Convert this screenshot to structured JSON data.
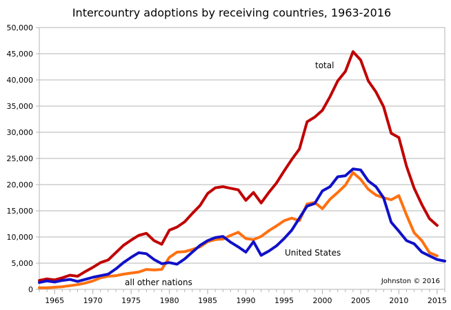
{
  "chart_data": {
    "type": "line",
    "title": "Intercountry adoptions by receiving countries, 1963-2016",
    "xlabel": "",
    "ylabel": "",
    "xlim": [
      1963,
      2016
    ],
    "ylim": [
      0,
      50000
    ],
    "grid": true,
    "x_ticks": [
      {
        "value": 1965,
        "label": "1965"
      },
      {
        "value": 1970,
        "label": "1970"
      },
      {
        "value": 1975,
        "label": "1975"
      },
      {
        "value": 1980,
        "label": "1980"
      },
      {
        "value": 1985,
        "label": "1985"
      },
      {
        "value": 1990,
        "label": "1990"
      },
      {
        "value": 1995,
        "label": "1995"
      },
      {
        "value": 2000,
        "label": "2000"
      },
      {
        "value": 2005,
        "label": "2005"
      },
      {
        "value": 2010,
        "label": "2010"
      },
      {
        "value": 2015,
        "label": "2015"
      }
    ],
    "y_ticks": [
      {
        "value": 0,
        "label": "0"
      },
      {
        "value": 5000,
        "label": "5,000"
      },
      {
        "value": 10000,
        "label": "10,000"
      },
      {
        "value": 15000,
        "label": "15,000"
      },
      {
        "value": 20000,
        "label": "20,000"
      },
      {
        "value": 25000,
        "label": "25,000"
      },
      {
        "value": 30000,
        "label": "30,000"
      },
      {
        "value": 35000,
        "label": "35,000"
      },
      {
        "value": 40000,
        "label": "40,000"
      },
      {
        "value": 45000,
        "label": "45,000"
      },
      {
        "value": 50000,
        "label": "50,000"
      }
    ],
    "series": [
      {
        "name": "total",
        "color": "#c00000",
        "x": [
          1963,
          1964,
          1965,
          1966,
          1967,
          1968,
          1969,
          1970,
          1971,
          1972,
          1973,
          1974,
          1975,
          1976,
          1977,
          1978,
          1979,
          1980,
          1981,
          1982,
          1983,
          1984,
          1985,
          1986,
          1987,
          1988,
          1989,
          1990,
          1991,
          1992,
          1993,
          1994,
          1995,
          1996,
          1997,
          1998,
          1999,
          2000,
          2001,
          2002,
          2003,
          2004,
          2005,
          2006,
          2007,
          2008,
          2009,
          2010,
          2011,
          2012,
          2013,
          2014,
          2015
        ],
        "values": [
          1700,
          2000,
          1800,
          2200,
          2700,
          2500,
          3400,
          4200,
          5100,
          5600,
          7000,
          8400,
          9400,
          10300,
          10700,
          9300,
          8600,
          11300,
          11900,
          12900,
          14500,
          16000,
          18300,
          19400,
          19600,
          19300,
          19000,
          17000,
          18500,
          16500,
          18500,
          20300,
          22600,
          24800,
          26800,
          32000,
          32900,
          34200,
          36800,
          39800,
          41600,
          45400,
          43800,
          39800,
          37700,
          34900,
          29800,
          29000,
          23500,
          19300,
          16200,
          13500,
          12200
        ]
      },
      {
        "name": "United States",
        "color": "#1010c8",
        "x": [
          1963,
          1964,
          1965,
          1966,
          1967,
          1968,
          1969,
          1970,
          1971,
          1972,
          1973,
          1974,
          1975,
          1976,
          1977,
          1978,
          1979,
          1980,
          1981,
          1982,
          1983,
          1984,
          1985,
          1986,
          1987,
          1988,
          1989,
          1990,
          1991,
          1992,
          1993,
          1994,
          1995,
          1996,
          1997,
          1998,
          1999,
          2000,
          2001,
          2002,
          2003,
          2004,
          2005,
          2006,
          2007,
          2008,
          2009,
          2010,
          2011,
          2012,
          2013,
          2014,
          2015,
          2016
        ],
        "values": [
          1300,
          1600,
          1400,
          1700,
          1900,
          1500,
          1900,
          2300,
          2600,
          2900,
          3900,
          5100,
          6100,
          7000,
          6800,
          5700,
          4900,
          5100,
          4800,
          5800,
          7100,
          8400,
          9300,
          9900,
          10100,
          9000,
          8100,
          7100,
          9100,
          6500,
          7300,
          8300,
          9700,
          11300,
          13600,
          15900,
          16400,
          18800,
          19600,
          21500,
          21700,
          23000,
          22800,
          20700,
          19600,
          17500,
          12800,
          11100,
          9300,
          8700,
          7100,
          6400,
          5700,
          5400
        ]
      },
      {
        "name": "all other nations",
        "color": "#ff7010",
        "x": [
          1963,
          1964,
          1965,
          1966,
          1967,
          1968,
          1969,
          1970,
          1971,
          1972,
          1973,
          1974,
          1975,
          1976,
          1977,
          1978,
          1979,
          1980,
          1981,
          1982,
          1983,
          1984,
          1985,
          1986,
          1987,
          1988,
          1989,
          1990,
          1991,
          1992,
          1993,
          1994,
          1995,
          1996,
          1997,
          1998,
          1999,
          2000,
          2001,
          2002,
          2003,
          2004,
          2005,
          2006,
          2007,
          2008,
          2009,
          2010,
          2011,
          2012,
          2013,
          2014,
          2015
        ],
        "values": [
          300,
          300,
          400,
          500,
          700,
          900,
          1200,
          1600,
          2200,
          2500,
          2600,
          2900,
          3100,
          3300,
          3800,
          3700,
          3800,
          6100,
          7100,
          7200,
          7600,
          8100,
          9100,
          9500,
          9600,
          10300,
          10900,
          9700,
          9500,
          10100,
          11200,
          12100,
          13100,
          13600,
          13100,
          16300,
          16600,
          15400,
          17200,
          18500,
          19900,
          22300,
          21000,
          19100,
          18000,
          17500,
          17100,
          17900,
          14200,
          10800,
          9300,
          7000,
          6400
        ]
      }
    ],
    "annotations": {
      "total": "total",
      "united_states": "United States",
      "all_other": "all other nations",
      "credit": "Johnston © 2016"
    }
  }
}
